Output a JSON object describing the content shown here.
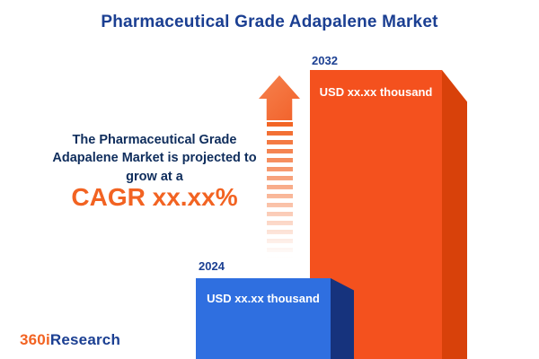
{
  "title": "Pharmaceutical Grade Adapalene Market",
  "description": {
    "text": "The Pharmaceutical Grade Adapalene Market is projected to grow at a",
    "cagr": "CAGR xx.xx%"
  },
  "chart_data": {
    "type": "bar",
    "categories": [
      "2024",
      "2032"
    ],
    "values": [
      null,
      null
    ],
    "value_labels": [
      "USD xx.xx thousand",
      "USD xx.xx thousand"
    ],
    "relative_heights": [
      0.28,
      1.0
    ],
    "title": "Pharmaceutical Grade Adapalene Market",
    "xlabel": "",
    "ylabel": "",
    "legend": false,
    "bar_colors": [
      "#2f6fe0",
      "#f4511e"
    ],
    "bar_side_colors": [
      "#16337d",
      "#d8410a"
    ],
    "note": "numeric values masked as xx.xx in source image"
  },
  "logo": {
    "prefix": "360i",
    "suffix": "Research"
  },
  "colors": {
    "title_navy": "#1b3f92",
    "text_navy": "#0f2d5c",
    "accent_orange": "#f26322",
    "background": "#ffffff"
  }
}
